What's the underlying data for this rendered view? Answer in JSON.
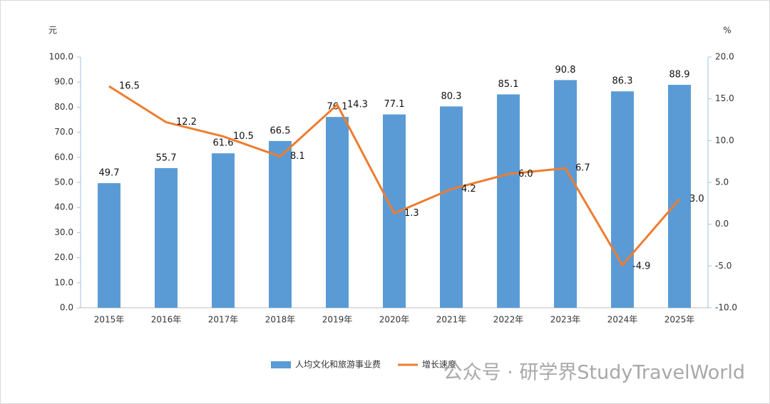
{
  "chart_data": {
    "type": "bar-line",
    "y_unit": "元",
    "y2_unit": "%",
    "categories": [
      "2015年",
      "2016年",
      "2017年",
      "2018年",
      "2019年",
      "2020年",
      "2021年",
      "2022年",
      "2023年",
      "2024年",
      "2025年"
    ],
    "series": [
      {
        "name": "人均文化和旅游事业费",
        "type": "bar",
        "color": "#5b9bd5",
        "values": [
          49.7,
          55.7,
          61.6,
          66.5,
          76.1,
          77.1,
          80.3,
          85.1,
          90.8,
          86.3,
          88.9
        ],
        "value_labels": [
          "49.7",
          "55.7",
          "61.6",
          "66.5",
          "76.1",
          "77.1",
          "80.3",
          "85.1",
          "90.8",
          "86.3",
          "88.9"
        ]
      },
      {
        "name": "增长速度",
        "type": "line",
        "axis": "y2",
        "color": "#ed7d31",
        "values": [
          16.5,
          12.2,
          10.5,
          8.1,
          14.3,
          1.3,
          4.2,
          6.0,
          6.7,
          -4.9,
          3.0
        ],
        "value_labels": [
          "16.5",
          "12.2",
          "10.5",
          "8.1",
          "14.3",
          "1.3",
          "4.2",
          "6.0",
          "6.7",
          "-4.9",
          "3.0"
        ]
      }
    ],
    "ylim": [
      0,
      100
    ],
    "yticks": [
      {
        "value": 0,
        "label": "0.0"
      },
      {
        "value": 10,
        "label": "10.0"
      },
      {
        "value": 20,
        "label": "20.0"
      },
      {
        "value": 30,
        "label": "30.0"
      },
      {
        "value": 40,
        "label": "40.0"
      },
      {
        "value": 50,
        "label": "50.0"
      },
      {
        "value": 60,
        "label": "60.0"
      },
      {
        "value": 70,
        "label": "70.0"
      },
      {
        "value": 80,
        "label": "80.0"
      },
      {
        "value": 90,
        "label": "90.0"
      },
      {
        "value": 100,
        "label": "100.0"
      }
    ],
    "y2lim": [
      -10,
      20
    ],
    "y2ticks": [
      {
        "value": -10,
        "label": "-10.0"
      },
      {
        "value": -5,
        "label": "-5.0"
      },
      {
        "value": 0,
        "label": "0.0"
      },
      {
        "value": 5,
        "label": "5.0"
      },
      {
        "value": 10,
        "label": "10.0"
      },
      {
        "value": 15,
        "label": "15.0"
      },
      {
        "value": 20,
        "label": "20.0"
      }
    ],
    "legend": "bottom",
    "watermark": "公众号 · 研学界StudyTravelWorld"
  }
}
